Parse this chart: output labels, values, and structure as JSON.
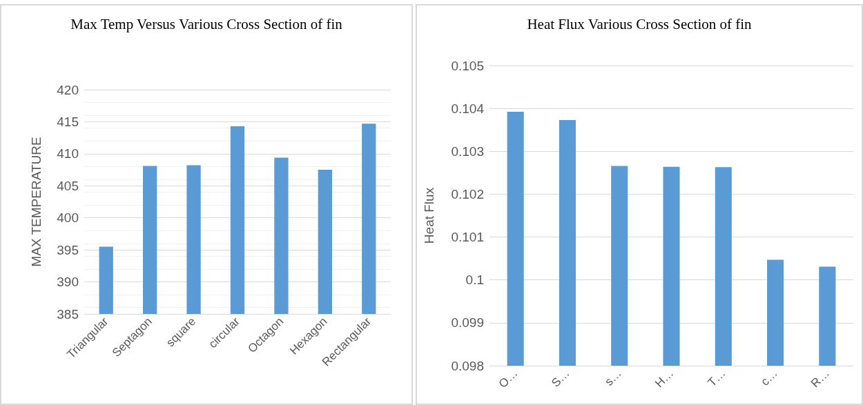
{
  "chart_data": [
    {
      "type": "bar",
      "title": "Max Temp Versus Various Cross Section of fin",
      "ylabel": "MAX TEMPERATURE",
      "categories": [
        "Triangular",
        "Septagon",
        "square",
        "circular",
        "Octagon",
        "Hexagon",
        "Rectangular"
      ],
      "values": [
        395.5,
        408.1,
        408.2,
        414.3,
        409.4,
        407.5,
        414.7
      ],
      "color": "#5b9bd5",
      "ylim": [
        385,
        420
      ],
      "yticks": [
        385,
        390,
        395,
        400,
        405,
        410,
        415,
        420
      ],
      "grid": "y"
    },
    {
      "type": "bar",
      "title": "Heat Flux Various Cross Section of fin",
      "ylabel": "Heat Flux",
      "categories": [
        "O…",
        "S…",
        "s…",
        "H…",
        "T…",
        "c…",
        "R…"
      ],
      "values": [
        0.10392,
        0.10373,
        0.10266,
        0.10264,
        0.10263,
        0.10047,
        0.10031
      ],
      "color": "#5b9bd5",
      "ylim": [
        0.098,
        0.105
      ],
      "yticks": [
        0.098,
        0.099,
        0.1,
        0.101,
        0.102,
        0.103,
        0.104,
        0.105
      ],
      "grid": "y"
    }
  ]
}
